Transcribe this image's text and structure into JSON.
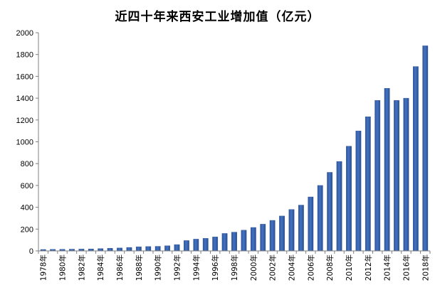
{
  "chart_data": {
    "type": "bar",
    "title": "近四十年来西安工业增加值（亿元）",
    "xlabel": "",
    "ylabel": "",
    "ylim": [
      0,
      2000
    ],
    "yticks": [
      0,
      200,
      400,
      600,
      800,
      1000,
      1200,
      1400,
      1600,
      1800,
      2000
    ],
    "grid": false,
    "legend": "none",
    "bar_color": "#4472C4",
    "categories": [
      "1978年",
      "1979年",
      "1980年",
      "1981年",
      "1982年",
      "1983年",
      "1984年",
      "1985年",
      "1986年",
      "1987年",
      "1988年",
      "1989年",
      "1990年",
      "1991年",
      "1992年",
      "1993年",
      "1994年",
      "1995年",
      "1996年",
      "1997年",
      "1998年",
      "1999年",
      "2000年",
      "2001年",
      "2002年",
      "2003年",
      "2004年",
      "2005年",
      "2006年",
      "2007年",
      "2008年",
      "2009年",
      "2010年",
      "2011年",
      "2012年",
      "2013年",
      "2014年",
      "2015年",
      "2016年",
      "2017年",
      "2018年"
    ],
    "labeled_categories": [
      "1978年",
      "1980年",
      "1982年",
      "1984年",
      "1986年",
      "1988年",
      "1990年",
      "1992年",
      "1994年",
      "1996年",
      "1998年",
      "2000年",
      "2002年",
      "2004年",
      "2006年",
      "2008年",
      "2010年",
      "2012年",
      "2014年",
      "2016年",
      "2018年"
    ],
    "values": [
      13,
      14,
      15,
      16,
      17,
      18,
      21,
      24,
      27,
      32,
      38,
      40,
      42,
      47,
      58,
      95,
      108,
      115,
      128,
      160,
      172,
      190,
      215,
      245,
      280,
      320,
      380,
      420,
      495,
      600,
      720,
      820,
      960,
      1100,
      1230,
      1380,
      1490,
      1380,
      1400,
      1690,
      1880
    ]
  }
}
